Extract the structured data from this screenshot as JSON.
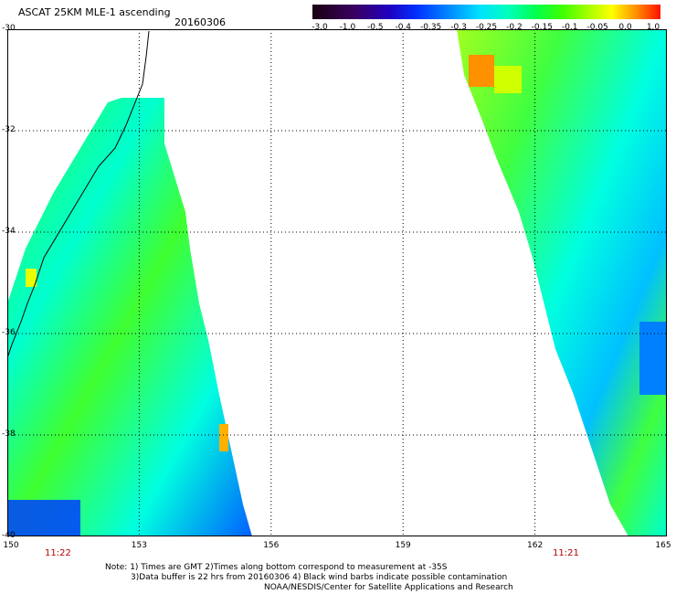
{
  "title": "ASCAT 25KM MLE-1 ascending",
  "date": "20160306",
  "colorbar": {
    "labels": [
      "-3.0",
      "-1.0",
      "-0.5",
      "-0.4",
      "-0.35",
      "-0.3",
      "-0.25",
      "-0.2",
      "-0.15",
      "-0.1",
      "-0.05",
      "0.0",
      "1.0"
    ],
    "colors": [
      "#1a0010",
      "#3a0060",
      "#3000c0",
      "#0030ff",
      "#0090ff",
      "#00e0ff",
      "#00ffc0",
      "#00ff60",
      "#40ff00",
      "#b0ff00",
      "#ffff00",
      "#ff9000",
      "#ff2000"
    ]
  },
  "axes": {
    "lat_labels": [
      "-30",
      "-32",
      "-34",
      "-36",
      "-38",
      "-40"
    ],
    "lon_labels": [
      "150",
      "153",
      "156",
      "159",
      "162",
      "165"
    ]
  },
  "pass_times": [
    "11:22",
    "11:21"
  ],
  "notes": {
    "line1": "Note: 1) Times are GMT 2)Times along bottom correspond to measurement at -35S",
    "line2": "3)Data buffer is 22 hrs from 20160306 4) Black wind barbs indicate possible contamination",
    "credit": "NOAA/NESDIS/Center for Satellite Applications and Research"
  }
}
